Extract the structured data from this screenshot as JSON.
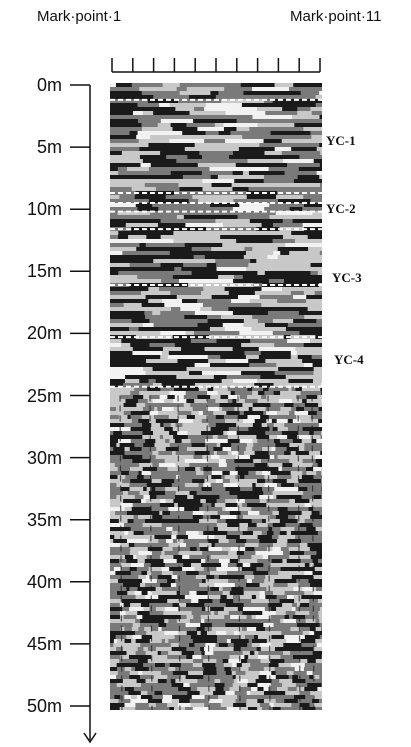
{
  "marks": {
    "left": "Mark·point·1",
    "right": "Mark·point·11",
    "tick_count": 11
  },
  "depth_axis": {
    "unit": "m",
    "min": 0,
    "max": 50,
    "ticks": [
      "0m",
      "5m",
      "10m",
      "15m",
      "20m",
      "25m",
      "30m",
      "35m",
      "40m",
      "45m",
      "50m"
    ]
  },
  "zones": [
    {
      "label": "YC-1",
      "top_m": 0,
      "bottom_m": 9
    },
    {
      "label": "YC-2",
      "top_m": 9,
      "bottom_m": 11
    },
    {
      "label": "YC-3",
      "top_m": 11,
      "bottom_m": 20
    },
    {
      "label": "YC-4",
      "top_m": 20,
      "bottom_m": 24.3
    }
  ],
  "boundaries_m": [
    1.2,
    8.7,
    9.5,
    10.2,
    11.6,
    16.1,
    20.3,
    24.3
  ],
  "colors": {
    "axis": "#111111",
    "boundary": "#ffffff",
    "dark": "#1a1a1a",
    "mid": "#7a7a7a",
    "light": "#c8c8c8"
  }
}
